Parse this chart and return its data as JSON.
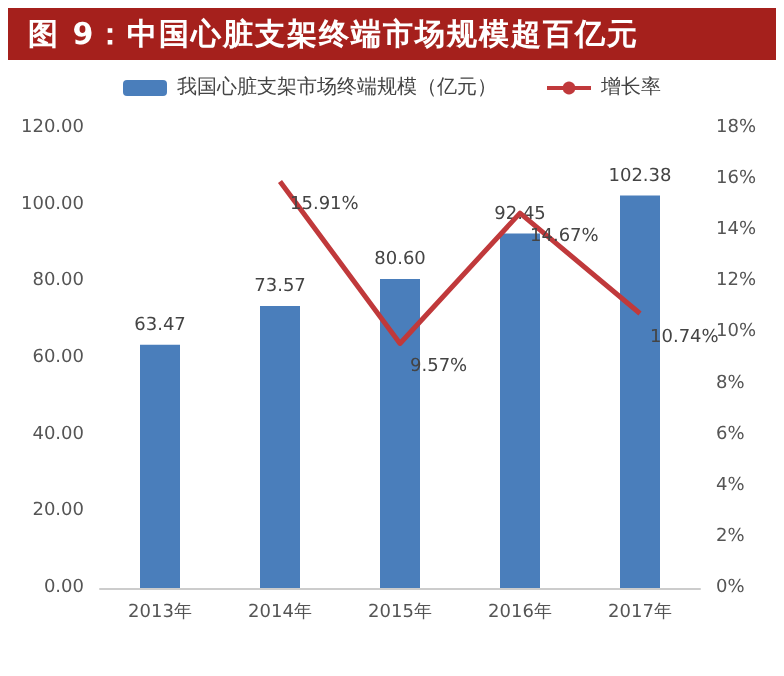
{
  "chart_data": {
    "type": "bar",
    "title": "图 9：中国心脏支架终端市场规模超百亿元",
    "categories": [
      "2013年",
      "2014年",
      "2015年",
      "2016年",
      "2017年"
    ],
    "series": [
      {
        "name": "我国心脏支架市场终端规模（亿元）",
        "color": "#4a7ebb",
        "values": [
          63.47,
          73.57,
          80.6,
          92.45,
          102.38
        ],
        "value_labels": [
          "63.47",
          "73.57",
          "80.60",
          "92.45",
          "102.38"
        ]
      },
      {
        "name": "增长率",
        "type": "line",
        "axis": "y2",
        "color": "#c0393b",
        "values": [
          null,
          15.91,
          9.57,
          14.67,
          10.74
        ],
        "value_labels": [
          null,
          "15.91%",
          "9.57%",
          "14.67%",
          "10.74%"
        ]
      }
    ],
    "ylim": [
      0,
      120
    ],
    "yticks": [
      {
        "value": 0,
        "label": "0.00"
      },
      {
        "value": 20,
        "label": "20.00"
      },
      {
        "value": 40,
        "label": "40.00"
      },
      {
        "value": 60,
        "label": "60.00"
      },
      {
        "value": 80,
        "label": "80.00"
      },
      {
        "value": 100,
        "label": "100.00"
      },
      {
        "value": 120,
        "label": "120.00"
      }
    ],
    "y2lim": [
      0,
      18
    ],
    "y2ticks": [
      {
        "value": 0,
        "label": "0%"
      },
      {
        "value": 2,
        "label": "2%"
      },
      {
        "value": 4,
        "label": "4%"
      },
      {
        "value": 6,
        "label": "6%"
      },
      {
        "value": 8,
        "label": "8%"
      },
      {
        "value": 10,
        "label": "10%"
      },
      {
        "value": 12,
        "label": "12%"
      },
      {
        "value": 14,
        "label": "14%"
      },
      {
        "value": 16,
        "label": "16%"
      },
      {
        "value": 18,
        "label": "18%"
      }
    ],
    "grid": false,
    "legend": "top",
    "marker": "none",
    "line_style": "solid"
  }
}
